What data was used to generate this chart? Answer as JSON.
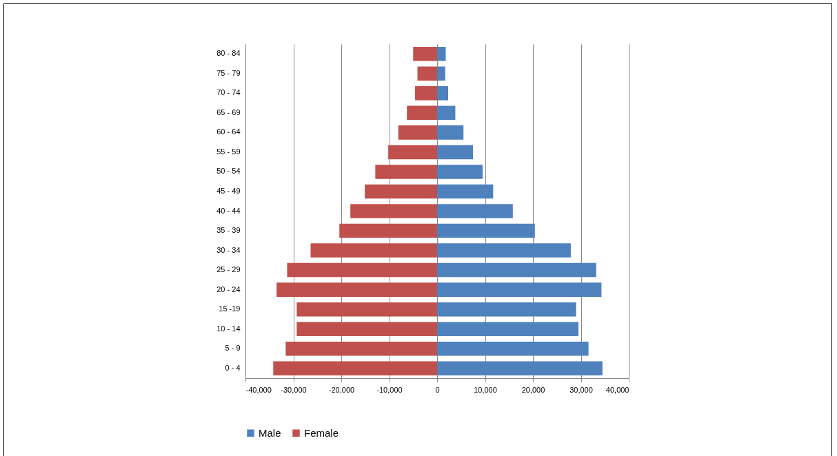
{
  "chart_data": {
    "type": "bar",
    "orientation": "horizontal",
    "stacked": true,
    "categories": [
      "80 - 84",
      "75 - 79",
      "70 - 74",
      "65 - 69",
      "60 - 64",
      "55 - 59",
      "50 - 54",
      "45 - 49",
      "40 - 44",
      "35 - 39",
      "30 - 34",
      "25 - 29",
      "20 - 24",
      "15 -19",
      "10 - 14",
      "5 - 9",
      "0 - 4"
    ],
    "series": [
      {
        "name": "Male",
        "color": "#4f81bd",
        "values": [
          1800,
          1700,
          2300,
          3800,
          5500,
          7500,
          9500,
          11700,
          15800,
          20400,
          27900,
          33200,
          34300,
          29000,
          29500,
          31600,
          34500
        ]
      },
      {
        "name": "Female",
        "color": "#c0504d",
        "values": [
          -5000,
          -4100,
          -4600,
          -6300,
          -8100,
          -10200,
          -12900,
          -15100,
          -18100,
          -20400,
          -26400,
          -31300,
          -33500,
          -29300,
          -29300,
          -31600,
          -34200
        ]
      }
    ],
    "xlim": [
      -40000,
      40000
    ],
    "xticks": [
      {
        "value": -40000,
        "label": "-40,000"
      },
      {
        "value": -30000,
        "label": "-30,000"
      },
      {
        "value": -20000,
        "label": "-20,000"
      },
      {
        "value": -10000,
        "label": "-10,000"
      },
      0,
      {
        "value": 10000,
        "label": "10,000"
      },
      {
        "value": 20000,
        "label": "20,000"
      },
      {
        "value": 30000,
        "label": "30,000"
      },
      {
        "value": 40000,
        "label": "40,000"
      }
    ],
    "grid": "x",
    "legend": "bottom"
  }
}
